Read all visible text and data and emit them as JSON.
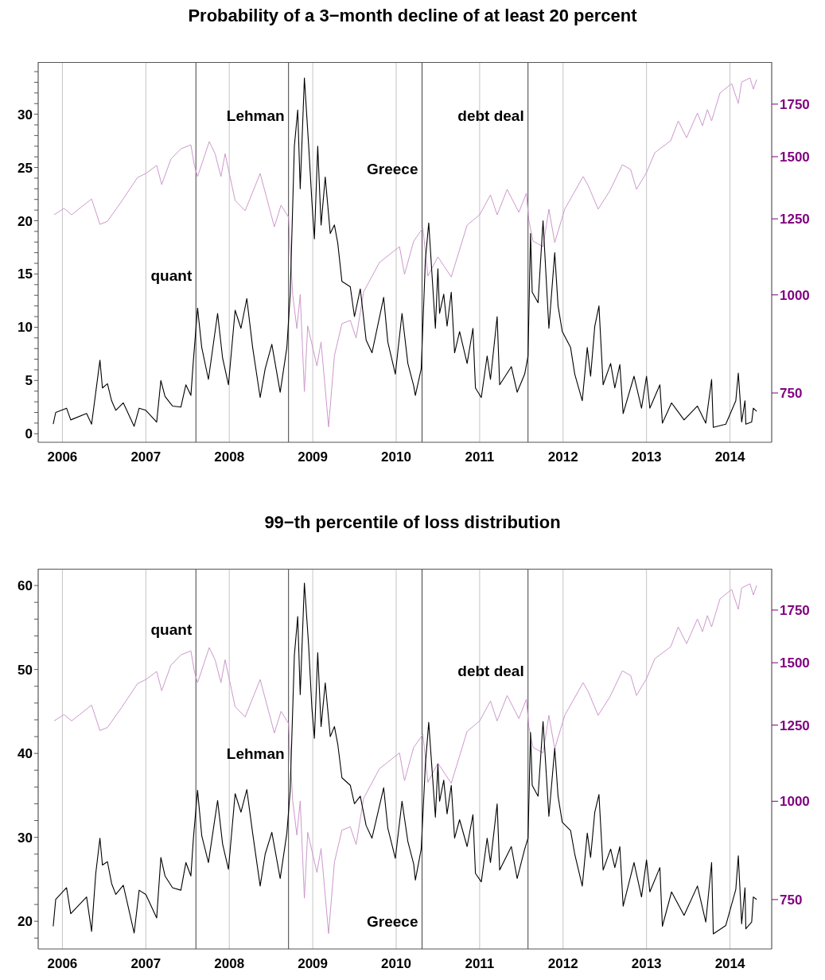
{
  "chart_data": [
    {
      "type": "line",
      "title": "Probability of a 3−month decline of at least 20 percent",
      "x": [
        2005.89,
        2005.92,
        2006.05,
        2006.1,
        2006.29,
        2006.35,
        2006.4,
        2006.45,
        2006.48,
        2006.54,
        2006.59,
        2006.64,
        2006.73,
        2006.86,
        2006.92,
        2007.0,
        2007.13,
        2007.18,
        2007.23,
        2007.32,
        2007.42,
        2007.48,
        2007.54,
        2007.57,
        2007.62,
        2007.67,
        2007.75,
        2007.86,
        2007.92,
        2007.99,
        2008.07,
        2008.14,
        2008.21,
        2008.28,
        2008.37,
        2008.43,
        2008.51,
        2008.61,
        2008.69,
        2008.73,
        2008.78,
        2008.82,
        2008.85,
        2008.9,
        2008.95,
        2008.99,
        2009.02,
        2009.06,
        2009.1,
        2009.15,
        2009.21,
        2009.26,
        2009.3,
        2009.35,
        2009.45,
        2009.5,
        2009.57,
        2009.64,
        2009.71,
        2009.85,
        2009.9,
        2009.99,
        2010.07,
        2010.14,
        2010.21,
        2010.23,
        2010.3,
        2010.35,
        2010.39,
        2010.47,
        2010.5,
        2010.52,
        2010.57,
        2010.61,
        2010.66,
        2010.7,
        2010.76,
        2010.85,
        2010.92,
        2010.95,
        2011.02,
        2011.09,
        2011.13,
        2011.21,
        2011.24,
        2011.38,
        2011.45,
        2011.54,
        2011.58,
        2011.61,
        2011.63,
        2011.7,
        2011.76,
        2011.83,
        2011.9,
        2011.94,
        2011.99,
        2012.09,
        2012.14,
        2012.23,
        2012.29,
        2012.33,
        2012.38,
        2012.43,
        2012.48,
        2012.57,
        2012.62,
        2012.68,
        2012.72,
        2012.85,
        2012.94,
        2013.0,
        2013.04,
        2013.16,
        2013.19,
        2013.3,
        2013.45,
        2013.61,
        2013.71,
        2013.78,
        2013.8,
        2013.95,
        2014.07,
        2014.1,
        2014.14,
        2014.18,
        2014.19,
        2014.26,
        2014.28,
        2014.32
      ],
      "series": [
        {
          "color": "#000000",
          "values": [
            0.9,
            2.0,
            2.4,
            1.3,
            1.9,
            0.9,
            3.9,
            6.9,
            4.3,
            4.7,
            3.1,
            2.2,
            2.9,
            0.7,
            2.4,
            2.2,
            1.1,
            5.0,
            3.5,
            2.6,
            2.5,
            4.6,
            3.6,
            6.9,
            11.8,
            8.1,
            5.1,
            11.3,
            7.1,
            4.6,
            11.6,
            9.9,
            12.7,
            8.1,
            3.4,
            6.1,
            8.4,
            3.9,
            8.1,
            13.1,
            27.0,
            30.4,
            23.0,
            33.4,
            27.2,
            21.8,
            18.3,
            27.0,
            19.6,
            24.1,
            18.8,
            19.6,
            17.9,
            14.3,
            13.8,
            11.0,
            13.6,
            8.8,
            7.6,
            12.8,
            8.6,
            5.6,
            11.3,
            6.6,
            4.5,
            3.6,
            6.1,
            16.3,
            19.8,
            9.9,
            15.5,
            11.3,
            13.1,
            10.1,
            13.3,
            7.6,
            9.6,
            6.6,
            9.9,
            4.3,
            3.4,
            7.3,
            5.1,
            11.0,
            4.6,
            6.3,
            3.9,
            5.6,
            7.3,
            18.8,
            13.3,
            12.3,
            20.0,
            9.9,
            17.0,
            12.0,
            9.6,
            8.1,
            5.6,
            3.1,
            8.1,
            5.4,
            10.1,
            12.0,
            4.6,
            6.6,
            4.3,
            6.5,
            1.9,
            5.4,
            2.4,
            5.4,
            2.4,
            4.6,
            1.0,
            2.9,
            1.3,
            2.6,
            1.0,
            5.1,
            0.6,
            0.9,
            3.1,
            5.7,
            1.1,
            3.1,
            0.9,
            1.1,
            2.4,
            2.1
          ]
        },
        {
          "color": "#cc99cc",
          "axis": "y2",
          "x": [
            2005.9,
            2006.02,
            2006.11,
            2006.35,
            2006.45,
            2006.54,
            2006.71,
            2006.9,
            2007.0,
            2007.13,
            2007.19,
            2007.3,
            2007.42,
            2007.54,
            2007.58,
            2007.62,
            2007.76,
            2007.83,
            2007.9,
            2007.95,
            2008.07,
            2008.19,
            2008.37,
            2008.54,
            2008.62,
            2008.71,
            2008.76,
            2008.81,
            2008.85,
            2008.9,
            2008.94,
            2009.05,
            2009.1,
            2009.19,
            2009.26,
            2009.35,
            2009.45,
            2009.52,
            2009.61,
            2009.8,
            2010.04,
            2010.1,
            2010.21,
            2010.32,
            2010.38,
            2010.5,
            2010.66,
            2010.85,
            2011.0,
            2011.13,
            2011.21,
            2011.33,
            2011.47,
            2011.56,
            2011.59,
            2011.64,
            2011.76,
            2011.83,
            2011.9,
            2012.02,
            2012.24,
            2012.3,
            2012.42,
            2012.56,
            2012.71,
            2012.81,
            2012.88,
            2013.0,
            2013.1,
            2013.29,
            2013.38,
            2013.48,
            2013.61,
            2013.67,
            2013.73,
            2013.78,
            2013.88,
            2014.02,
            2014.1,
            2014.14,
            2014.24,
            2014.28,
            2014.32
          ],
          "values": [
            1265,
            1289,
            1265,
            1325,
            1230,
            1241,
            1316,
            1411,
            1428,
            1462,
            1382,
            1489,
            1535,
            1553,
            1465,
            1415,
            1568,
            1513,
            1415,
            1513,
            1319,
            1280,
            1428,
            1221,
            1301,
            1256,
            1001,
            906,
            1001,
            753,
            913,
            812,
            871,
            679,
            837,
            919,
            928,
            881,
            1009,
            1100,
            1152,
            1062,
            1171,
            1216,
            1057,
            1118,
            1054,
            1227,
            1265,
            1341,
            1265,
            1363,
            1274,
            1348,
            1244,
            1171,
            1152,
            1286,
            1166,
            1286,
            1415,
            1379,
            1286,
            1357,
            1465,
            1445,
            1363,
            1432,
            1518,
            1572,
            1666,
            1586,
            1705,
            1643,
            1722,
            1666,
            1808,
            1859,
            1754,
            1867,
            1890,
            1829,
            1881
          ]
        }
      ],
      "xlim": [
        2005.71,
        2014.5
      ],
      "xticks": [
        2006,
        2007,
        2008,
        2009,
        2010,
        2011,
        2012,
        2013,
        2014
      ],
      "ylim": [
        -0.8,
        34.9
      ],
      "yticks": [
        0,
        {
          "value": 1,
          "label": null
        },
        {
          "value": 2,
          "label": null
        },
        {
          "value": 3,
          "label": null
        },
        {
          "value": 4,
          "label": null
        },
        5,
        {
          "value": 6,
          "label": null
        },
        {
          "value": 7,
          "label": null
        },
        {
          "value": 8,
          "label": null
        },
        {
          "value": 9,
          "label": null
        },
        10,
        {
          "value": 11,
          "label": null
        },
        {
          "value": 12,
          "label": null
        },
        {
          "value": 13,
          "label": null
        },
        {
          "value": 14,
          "label": null
        },
        15,
        {
          "value": 16,
          "label": null
        },
        {
          "value": 17,
          "label": null
        },
        {
          "value": 18,
          "label": null
        },
        {
          "value": 19,
          "label": null
        },
        20,
        {
          "value": 21,
          "label": null
        },
        {
          "value": 22,
          "label": null
        },
        {
          "value": 23,
          "label": null
        },
        {
          "value": 24,
          "label": null
        },
        25,
        {
          "value": 26,
          "label": null
        },
        {
          "value": 27,
          "label": null
        },
        {
          "value": 28,
          "label": null
        },
        {
          "value": 29,
          "label": null
        },
        30,
        {
          "value": 31,
          "label": null
        },
        {
          "value": 32,
          "label": null
        },
        {
          "value": 33,
          "label": null
        },
        {
          "value": 34,
          "label": null
        }
      ],
      "y2lim": [
        649,
        1980
      ],
      "y2ticks": [
        750,
        1000,
        1250,
        1500,
        1750
      ],
      "log": "y2",
      "grid": "x",
      "ref_lines": [
        {
          "axis": "x",
          "value": 2007.6,
          "color": "#404040"
        },
        {
          "axis": "x",
          "value": 2008.71,
          "color": "#404040"
        },
        {
          "axis": "x",
          "value": 2010.31,
          "color": "#404040"
        },
        {
          "axis": "x",
          "value": 2011.58,
          "color": "#404040"
        }
      ],
      "annotations": [
        {
          "text": "quant",
          "x": 2007.6,
          "y": 14.9
        },
        {
          "text": "Lehman",
          "x": 2008.71,
          "y": 29.9
        },
        {
          "text": "Greece",
          "x": 2010.31,
          "y": 24.9
        },
        {
          "text": "debt deal",
          "x": 2011.58,
          "y": 29.9
        }
      ]
    },
    {
      "type": "line",
      "title": "99−th percentile of loss distribution",
      "x": [
        2005.89,
        2005.92,
        2006.05,
        2006.1,
        2006.29,
        2006.35,
        2006.4,
        2006.45,
        2006.48,
        2006.54,
        2006.59,
        2006.64,
        2006.73,
        2006.86,
        2006.92,
        2007.0,
        2007.13,
        2007.18,
        2007.23,
        2007.32,
        2007.42,
        2007.48,
        2007.54,
        2007.57,
        2007.62,
        2007.67,
        2007.75,
        2007.86,
        2007.92,
        2007.99,
        2008.07,
        2008.14,
        2008.21,
        2008.28,
        2008.37,
        2008.43,
        2008.51,
        2008.61,
        2008.69,
        2008.73,
        2008.78,
        2008.82,
        2008.85,
        2008.9,
        2008.95,
        2008.99,
        2009.02,
        2009.06,
        2009.1,
        2009.15,
        2009.21,
        2009.26,
        2009.3,
        2009.35,
        2009.45,
        2009.5,
        2009.57,
        2009.64,
        2009.71,
        2009.85,
        2009.9,
        2009.99,
        2010.07,
        2010.14,
        2010.21,
        2010.23,
        2010.3,
        2010.35,
        2010.39,
        2010.47,
        2010.5,
        2010.52,
        2010.57,
        2010.61,
        2010.66,
        2010.7,
        2010.76,
        2010.85,
        2010.92,
        2010.95,
        2011.02,
        2011.09,
        2011.13,
        2011.21,
        2011.24,
        2011.38,
        2011.45,
        2011.54,
        2011.58,
        2011.61,
        2011.63,
        2011.7,
        2011.76,
        2011.83,
        2011.9,
        2011.94,
        2011.99,
        2012.09,
        2012.14,
        2012.23,
        2012.29,
        2012.33,
        2012.38,
        2012.43,
        2012.48,
        2012.57,
        2012.62,
        2012.68,
        2012.72,
        2012.85,
        2012.94,
        2013.0,
        2013.04,
        2013.16,
        2013.19,
        2013.3,
        2013.45,
        2013.61,
        2013.71,
        2013.78,
        2013.8,
        2013.95,
        2014.07,
        2014.1,
        2014.14,
        2014.18,
        2014.19,
        2014.26,
        2014.28,
        2014.32
      ],
      "series": [
        {
          "color": "#000000",
          "values": [
            19.4,
            22.6,
            24.0,
            20.9,
            22.9,
            18.8,
            25.7,
            29.9,
            26.7,
            27.1,
            24.5,
            23.2,
            24.3,
            18.6,
            23.7,
            23.2,
            20.4,
            27.6,
            25.4,
            24.0,
            23.7,
            27.0,
            25.4,
            29.9,
            35.6,
            30.2,
            27.0,
            34.4,
            29.2,
            26.2,
            35.2,
            33.0,
            35.7,
            30.5,
            24.2,
            28.0,
            30.6,
            25.1,
            30.5,
            35.6,
            51.7,
            56.3,
            47.0,
            60.3,
            53.0,
            45.4,
            41.8,
            52.0,
            43.2,
            48.4,
            42.0,
            43.2,
            41.1,
            37.1,
            36.2,
            34.0,
            34.9,
            31.4,
            29.9,
            35.9,
            31.1,
            27.5,
            34.3,
            29.5,
            26.8,
            24.9,
            28.6,
            38.7,
            43.7,
            32.4,
            38.7,
            34.3,
            36.8,
            32.8,
            36.2,
            29.9,
            32.1,
            28.9,
            32.7,
            25.7,
            24.7,
            29.9,
            27.0,
            34.0,
            26.1,
            28.9,
            25.1,
            28.6,
            29.9,
            42.5,
            36.2,
            34.9,
            43.8,
            32.5,
            40.6,
            34.9,
            31.8,
            30.8,
            28.0,
            24.2,
            30.5,
            27.6,
            33.0,
            35.1,
            26.1,
            28.6,
            26.4,
            28.9,
            21.8,
            27.0,
            22.9,
            27.3,
            23.5,
            26.4,
            19.4,
            23.5,
            20.7,
            24.2,
            19.9,
            27.0,
            18.5,
            19.5,
            23.8,
            27.8,
            19.7,
            24.0,
            19.1,
            19.9,
            22.9,
            22.6
          ]
        },
        {
          "color": "#cc99cc",
          "axis": "y2",
          "x": [
            2005.9,
            2006.02,
            2006.11,
            2006.35,
            2006.45,
            2006.54,
            2006.71,
            2006.9,
            2007.0,
            2007.13,
            2007.19,
            2007.3,
            2007.42,
            2007.54,
            2007.58,
            2007.62,
            2007.76,
            2007.83,
            2007.9,
            2007.95,
            2008.07,
            2008.19,
            2008.37,
            2008.54,
            2008.62,
            2008.71,
            2008.76,
            2008.81,
            2008.85,
            2008.9,
            2008.94,
            2009.05,
            2009.1,
            2009.19,
            2009.26,
            2009.35,
            2009.45,
            2009.52,
            2009.61,
            2009.8,
            2010.04,
            2010.1,
            2010.21,
            2010.32,
            2010.38,
            2010.5,
            2010.66,
            2010.85,
            2011.0,
            2011.13,
            2011.21,
            2011.33,
            2011.47,
            2011.56,
            2011.59,
            2011.64,
            2011.76,
            2011.83,
            2011.9,
            2012.02,
            2012.24,
            2012.3,
            2012.42,
            2012.56,
            2012.71,
            2012.81,
            2012.88,
            2013.0,
            2013.1,
            2013.29,
            2013.38,
            2013.48,
            2013.61,
            2013.67,
            2013.73,
            2013.78,
            2013.88,
            2014.02,
            2014.1,
            2014.14,
            2014.24,
            2014.28,
            2014.32
          ],
          "values": [
            1265,
            1289,
            1265,
            1325,
            1230,
            1241,
            1316,
            1411,
            1428,
            1462,
            1382,
            1489,
            1535,
            1553,
            1465,
            1415,
            1568,
            1513,
            1415,
            1513,
            1319,
            1280,
            1428,
            1221,
            1301,
            1256,
            1001,
            906,
            1001,
            753,
            913,
            812,
            871,
            679,
            837,
            919,
            928,
            881,
            1009,
            1100,
            1152,
            1062,
            1171,
            1216,
            1057,
            1118,
            1054,
            1227,
            1265,
            1341,
            1265,
            1363,
            1274,
            1348,
            1244,
            1171,
            1152,
            1286,
            1166,
            1286,
            1415,
            1379,
            1286,
            1357,
            1465,
            1445,
            1363,
            1432,
            1518,
            1572,
            1666,
            1586,
            1705,
            1643,
            1722,
            1666,
            1808,
            1859,
            1754,
            1867,
            1890,
            1829,
            1881
          ]
        }
      ],
      "xlim": [
        2005.71,
        2014.5
      ],
      "xticks": [
        2006,
        2007,
        2008,
        2009,
        2010,
        2011,
        2012,
        2013,
        2014
      ],
      "ylim": [
        16.7,
        62
      ],
      "yticks": [
        {
          "value": 18,
          "label": null
        },
        20,
        {
          "value": 22,
          "label": null
        },
        {
          "value": 24,
          "label": null
        },
        {
          "value": 26,
          "label": null
        },
        {
          "value": 28,
          "label": null
        },
        30,
        {
          "value": 32,
          "label": null
        },
        {
          "value": 34,
          "label": null
        },
        {
          "value": 36,
          "label": null
        },
        {
          "value": 38,
          "label": null
        },
        40,
        {
          "value": 42,
          "label": null
        },
        {
          "value": 44,
          "label": null
        },
        {
          "value": 46,
          "label": null
        },
        {
          "value": 48,
          "label": null
        },
        50,
        {
          "value": 52,
          "label": null
        },
        {
          "value": 54,
          "label": null
        },
        {
          "value": 56,
          "label": null
        },
        {
          "value": 58,
          "label": null
        },
        60
      ],
      "y2lim": [
        649,
        1975
      ],
      "y2ticks": [
        750,
        1000,
        1250,
        1500,
        1750
      ],
      "log": "y2",
      "grid": "x",
      "ref_lines": [
        {
          "axis": "x",
          "value": 2007.6,
          "color": "#404040"
        },
        {
          "axis": "x",
          "value": 2008.71,
          "color": "#404040"
        },
        {
          "axis": "x",
          "value": 2010.31,
          "color": "#404040"
        },
        {
          "axis": "x",
          "value": 2011.58,
          "color": "#404040"
        }
      ],
      "annotations": [
        {
          "text": "quant",
          "x": 2007.6,
          "y": 54.8
        },
        {
          "text": "Lehman",
          "x": 2008.71,
          "y": 40.0
        },
        {
          "text": "Greece",
          "x": 2010.31,
          "y": 20.0
        },
        {
          "text": "debt deal",
          "x": 2011.58,
          "y": 49.8
        }
      ]
    }
  ]
}
